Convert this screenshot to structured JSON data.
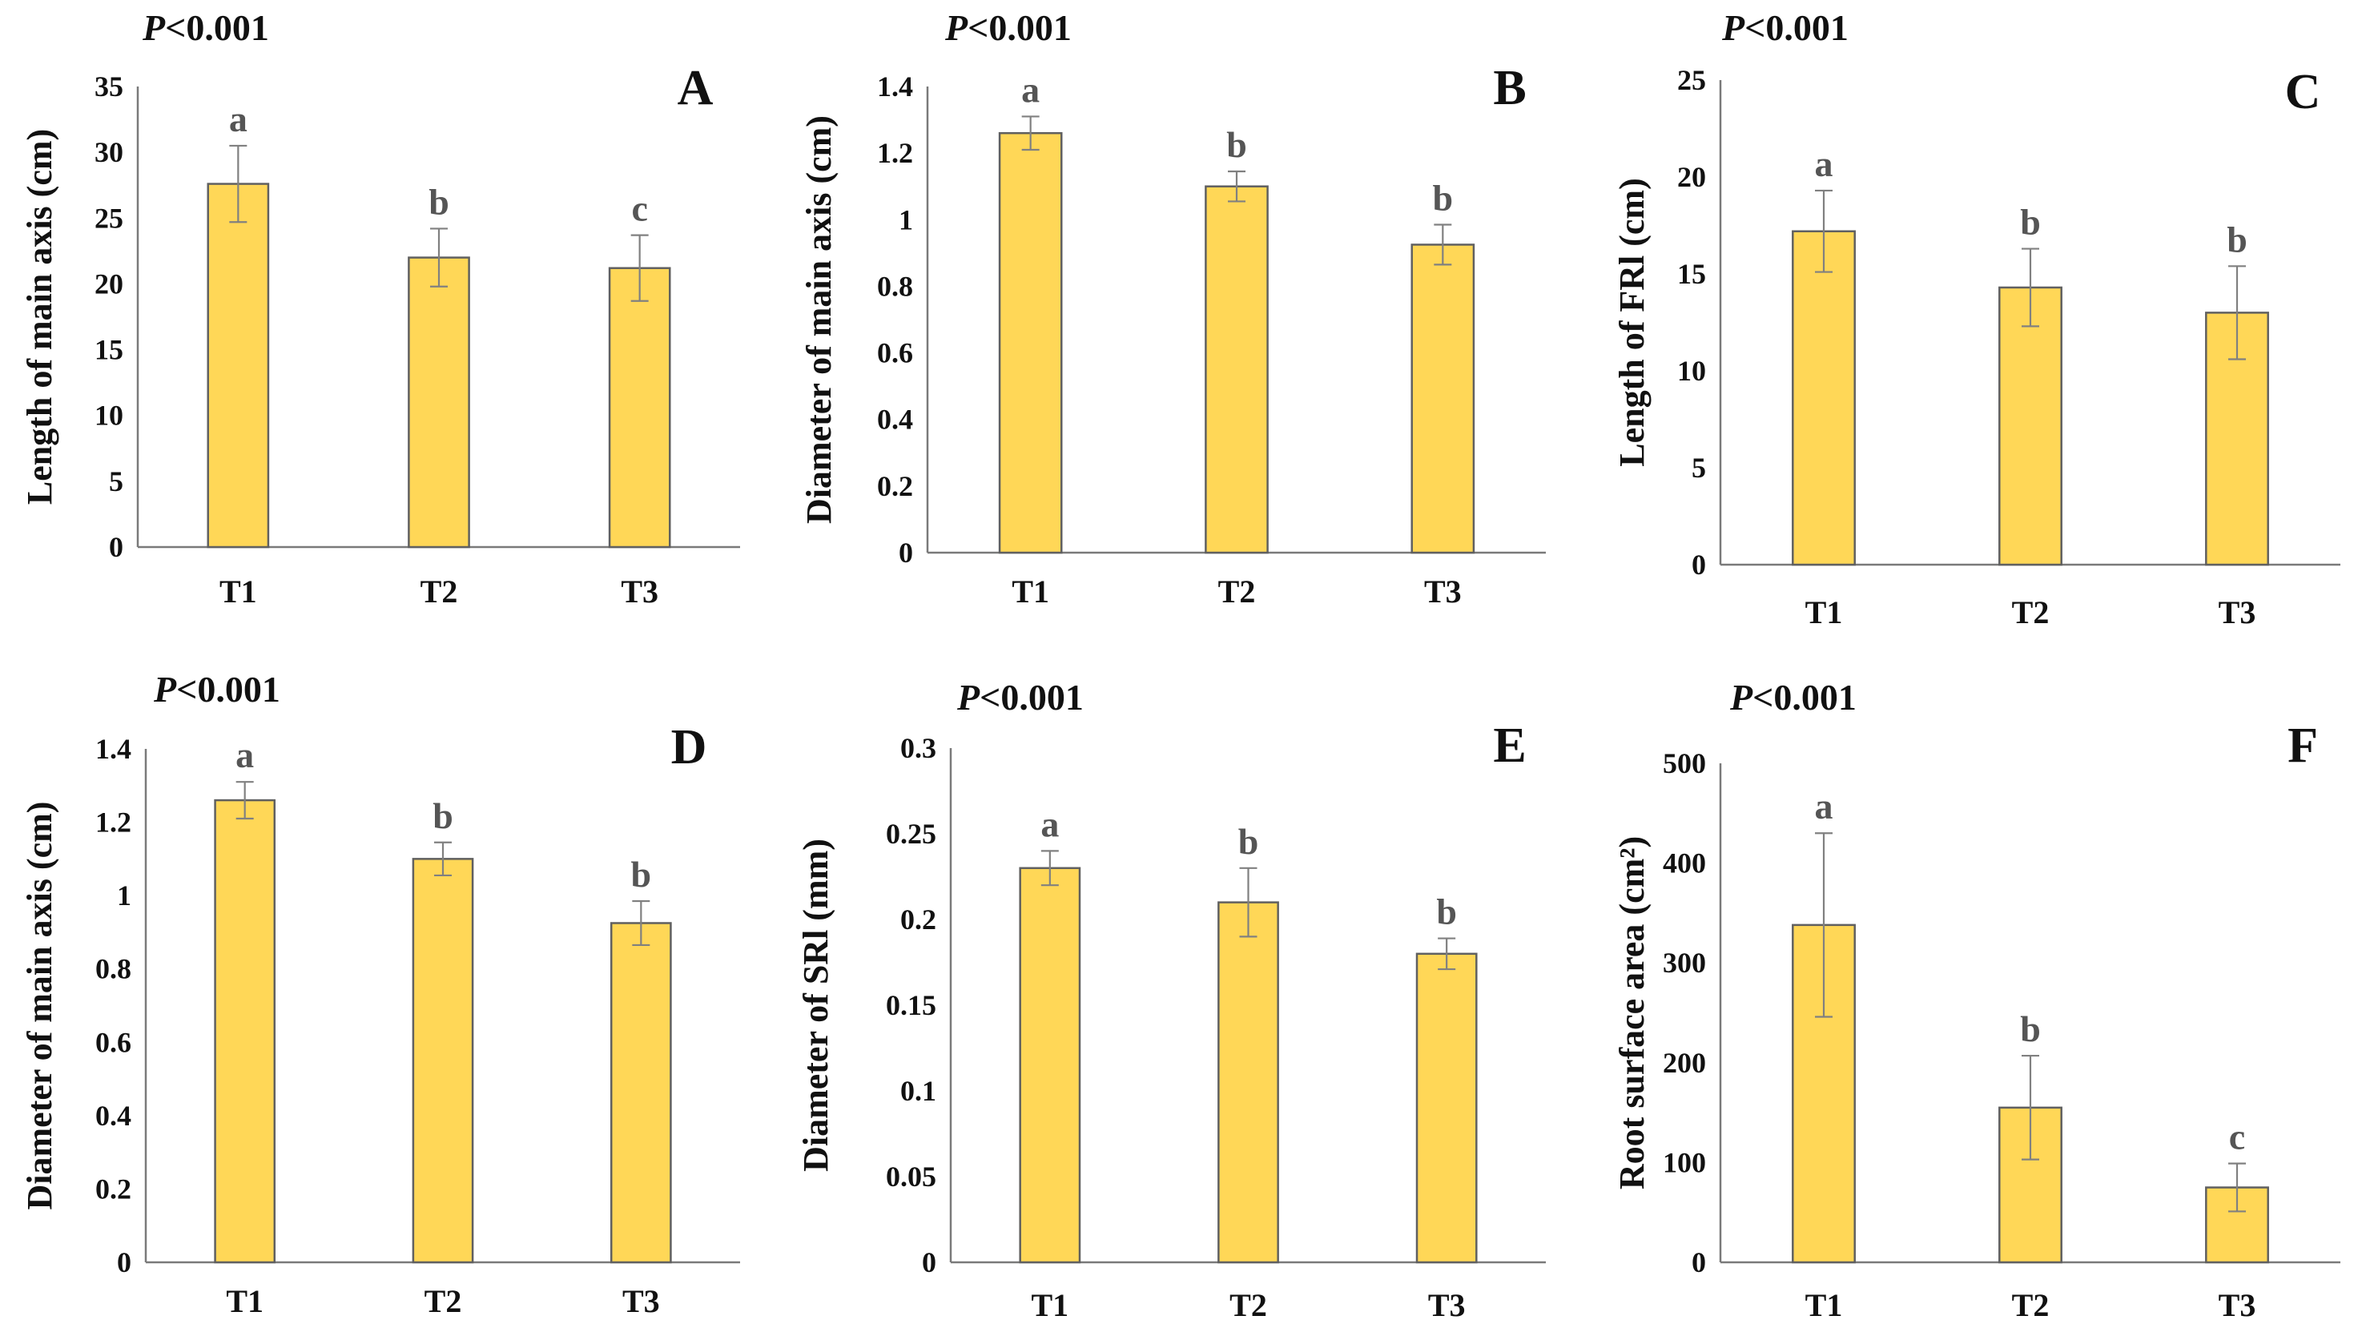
{
  "chart_data": [
    {
      "type": "bar",
      "panel": "A",
      "pvalue_symbol": "P",
      "pvalue_rest": "<0.001",
      "ylabel": "Length of main axis (cm)",
      "categories": [
        "T1",
        "T2",
        "T3"
      ],
      "values": [
        27.6,
        22.0,
        21.2
      ],
      "errors": [
        2.9,
        2.2,
        2.5
      ],
      "sig": [
        "a",
        "b",
        "c"
      ],
      "ylim": [
        0,
        35
      ],
      "yticks": [
        0,
        5,
        10,
        15,
        20,
        25,
        30,
        35
      ],
      "ytick_labels": [
        "0",
        "5",
        "10",
        "15",
        "20",
        "25",
        "30",
        "35"
      ],
      "color": "#FFD757"
    },
    {
      "type": "bar",
      "panel": "B",
      "pvalue_symbol": "P",
      "pvalue_rest": "<0.001",
      "ylabel": "Diameter of main axis (cm)",
      "categories": [
        "T1",
        "T2",
        "T3"
      ],
      "values": [
        1.26,
        1.1,
        0.925
      ],
      "errors": [
        0.05,
        0.045,
        0.06
      ],
      "sig": [
        "a",
        "b",
        "b"
      ],
      "ylim": [
        0,
        1.4
      ],
      "yticks": [
        0,
        0.2,
        0.4,
        0.6,
        0.8,
        1.0,
        1.2,
        1.4
      ],
      "ytick_labels": [
        "0",
        "0.2",
        "0.4",
        "0.6",
        "0.8",
        "1",
        "1.2",
        "1.4"
      ],
      "color": "#FFD757"
    },
    {
      "type": "bar",
      "panel": "C",
      "pvalue_symbol": "P",
      "pvalue_rest": "<0.001",
      "ylabel": "Length of FRl (cm)",
      "categories": [
        "T1",
        "T2",
        "T3"
      ],
      "values": [
        17.2,
        14.3,
        13.0
      ],
      "errors": [
        2.1,
        2.0,
        2.4
      ],
      "sig": [
        "a",
        "b",
        "b"
      ],
      "ylim": [
        0,
        25
      ],
      "yticks": [
        0,
        5,
        10,
        15,
        20,
        25
      ],
      "ytick_labels": [
        "0",
        "5",
        "10",
        "15",
        "20",
        "25"
      ],
      "color": "#FFD757"
    },
    {
      "type": "bar",
      "panel": "D",
      "pvalue_symbol": "P",
      "pvalue_rest": "<0.001",
      "ylabel": "Diameter of main axis (cm)",
      "categories": [
        "T1",
        "T2",
        "T3"
      ],
      "values": [
        1.26,
        1.1,
        0.925
      ],
      "errors": [
        0.05,
        0.045,
        0.06
      ],
      "sig": [
        "a",
        "b",
        "b"
      ],
      "ylim": [
        0,
        1.4
      ],
      "yticks": [
        0,
        0.2,
        0.4,
        0.6,
        0.8,
        1.0,
        1.2,
        1.4
      ],
      "ytick_labels": [
        "0",
        "0.2",
        "0.4",
        "0.6",
        "0.8",
        "1",
        "1.2",
        "1.4"
      ],
      "color": "#FFD757"
    },
    {
      "type": "bar",
      "panel": "E",
      "pvalue_symbol": "P",
      "pvalue_rest": "<0.001",
      "ylabel": "Diameter of SRl (mm)",
      "categories": [
        "T1",
        "T2",
        "T3"
      ],
      "values": [
        0.23,
        0.21,
        0.18
      ],
      "errors": [
        0.01,
        0.02,
        0.009
      ],
      "sig": [
        "a",
        "b",
        "b"
      ],
      "ylim": [
        0,
        0.3
      ],
      "yticks": [
        0,
        0.05,
        0.1,
        0.15,
        0.2,
        0.25,
        0.3
      ],
      "ytick_labels": [
        "0",
        "0.05",
        "0.1",
        "0.15",
        "0.2",
        "0.25",
        "0.3"
      ],
      "color": "#FFD757"
    },
    {
      "type": "bar",
      "panel": "F",
      "pvalue_symbol": "P",
      "pvalue_rest": "<0.001",
      "ylabel": "Root surface area (cm²)",
      "categories": [
        "T1",
        "T2",
        "T3"
      ],
      "values": [
        338,
        155,
        75
      ],
      "errors": [
        92,
        52,
        24
      ],
      "sig": [
        "a",
        "b",
        "c"
      ],
      "ylim": [
        0,
        500
      ],
      "yticks": [
        0,
        100,
        200,
        300,
        400,
        500
      ],
      "ytick_labels": [
        "0",
        "100",
        "200",
        "300",
        "400",
        "500"
      ],
      "color": "#FFD757"
    }
  ]
}
